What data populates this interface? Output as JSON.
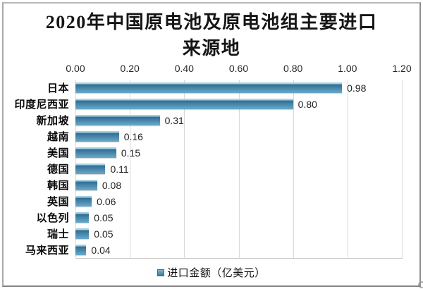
{
  "title": {
    "lines": [
      "2020年中国原电池及原电池组主要进口",
      "来源地"
    ]
  },
  "chart_data": {
    "type": "bar",
    "orientation": "horizontal",
    "title": "2020年中国原电池及原电池组主要进口来源地",
    "categories": [
      "日本",
      "印度尼西亚",
      "新加坡",
      "越南",
      "美国",
      "德国",
      "韩国",
      "英国",
      "以色列",
      "瑞士",
      "马来西亚"
    ],
    "values": [
      0.98,
      0.8,
      0.31,
      0.16,
      0.15,
      0.11,
      0.08,
      0.06,
      0.05,
      0.05,
      0.04
    ],
    "value_labels": [
      "0.98",
      "0.80",
      "0.31",
      "0.16",
      "0.15",
      "0.11",
      "0.08",
      "0.06",
      "0.05",
      "0.05",
      "0.04"
    ],
    "xlim": [
      0,
      1.2
    ],
    "x_tick_labels": [
      "0.00",
      "0.20",
      "0.40",
      "0.60",
      "0.80",
      "1.00",
      "1.20"
    ],
    "x_tick_values": [
      0,
      0.2,
      0.4,
      0.6,
      0.8,
      1.0,
      1.2
    ],
    "axis_position": "top",
    "grid": true,
    "legend": {
      "label": "进口金额（亿美元）",
      "position": "bottom",
      "marker_color": "#4787AB"
    },
    "colors": {
      "bar": "#4787AB",
      "bar_top_edge": "#2F6D90",
      "bar_highlight": "#A9CFE2",
      "gridline": "#D9D9D9",
      "text": "#1F1F1F"
    }
  }
}
